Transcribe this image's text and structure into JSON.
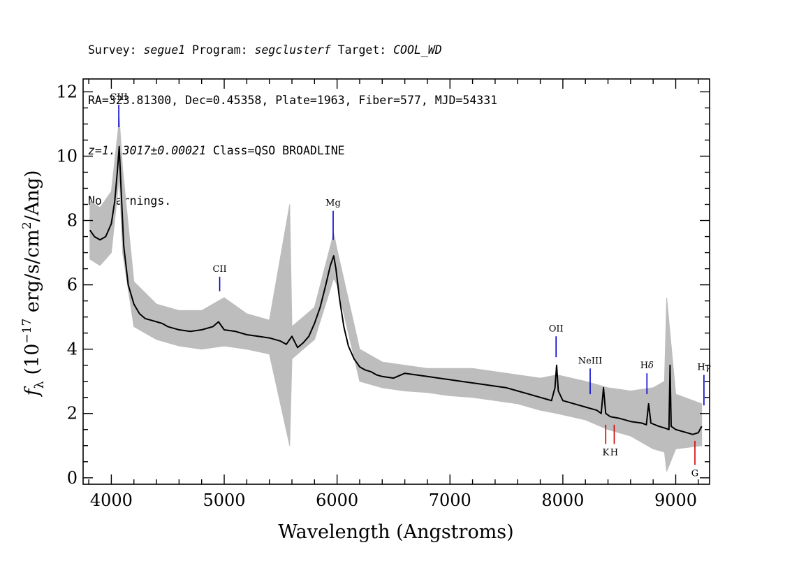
{
  "header": {
    "line1": {
      "survey_label": "Survey: ",
      "survey": "segue1",
      "program_label": " Program: ",
      "program": "segclusterf",
      "target_label": " Target: ",
      "target": "COOL_WD"
    },
    "line2": "RA=323.81300, Dec=0.45358, Plate=1963, Fiber=577, MJD=54331",
    "line3": {
      "z": "z=1.13017±0.00021",
      "class": " Class=QSO BROADLINE"
    },
    "line4": "No warnings."
  },
  "chart_data": {
    "type": "line",
    "xlabel": "Wavelength (Angstroms)",
    "ylabel": {
      "f": "f",
      "sub": "λ",
      "pre": " (10",
      "exp1": "−17",
      "mid": " erg/s/cm",
      "exp2": "2",
      "post": "/Ang)"
    },
    "xlim": [
      3750,
      9300
    ],
    "ylim": [
      -0.2,
      12.4
    ],
    "xticks": [
      4000,
      5000,
      6000,
      7000,
      8000,
      9000
    ],
    "yticks": [
      0,
      2,
      4,
      6,
      8,
      10,
      12
    ],
    "x_minor_step": 200,
    "y_minor_step": 0.5,
    "colors": {
      "flux": "#000000",
      "error": "#bdbdbd",
      "emission": "#0000cc",
      "absorption": "#cc0000"
    },
    "series": [
      {
        "role": "flux",
        "x": [
          3810,
          3850,
          3900,
          3950,
          4000,
          4030,
          4055,
          4070,
          4085,
          4110,
          4150,
          4200,
          4250,
          4300,
          4350,
          4400,
          4450,
          4500,
          4600,
          4700,
          4800,
          4900,
          4950,
          5000,
          5100,
          5200,
          5300,
          5400,
          5500,
          5550,
          5600,
          5650,
          5700,
          5750,
          5800,
          5850,
          5900,
          5940,
          5970,
          5990,
          6020,
          6060,
          6100,
          6150,
          6200,
          6250,
          6300,
          6350,
          6400,
          6500,
          6600,
          6700,
          6800,
          6900,
          7000,
          7100,
          7200,
          7300,
          7400,
          7500,
          7600,
          7700,
          7800,
          7850,
          7900,
          7930,
          7945,
          7960,
          8000,
          8050,
          8100,
          8150,
          8200,
          8250,
          8300,
          8340,
          8360,
          8380,
          8420,
          8500,
          8600,
          8700,
          8740,
          8760,
          8780,
          8850,
          8900,
          8940,
          8950,
          8960,
          9000,
          9050,
          9100,
          9150,
          9200,
          9230
        ],
        "y": [
          7.7,
          7.5,
          7.4,
          7.5,
          7.9,
          8.6,
          9.6,
          10.3,
          9.1,
          7.2,
          6.0,
          5.4,
          5.1,
          4.95,
          4.9,
          4.85,
          4.8,
          4.7,
          4.6,
          4.55,
          4.6,
          4.7,
          4.85,
          4.6,
          4.55,
          4.45,
          4.4,
          4.35,
          4.25,
          4.15,
          4.4,
          4.05,
          4.2,
          4.4,
          4.8,
          5.3,
          6.0,
          6.6,
          6.9,
          6.5,
          5.6,
          4.7,
          4.1,
          3.7,
          3.45,
          3.35,
          3.3,
          3.2,
          3.15,
          3.1,
          3.25,
          3.2,
          3.15,
          3.1,
          3.05,
          3.0,
          2.95,
          2.9,
          2.85,
          2.8,
          2.7,
          2.6,
          2.5,
          2.45,
          2.4,
          2.8,
          3.5,
          2.7,
          2.4,
          2.35,
          2.3,
          2.25,
          2.2,
          2.15,
          2.1,
          2.0,
          2.8,
          2.0,
          1.9,
          1.85,
          1.75,
          1.7,
          1.65,
          2.3,
          1.7,
          1.6,
          1.55,
          1.5,
          3.5,
          1.6,
          1.5,
          1.45,
          1.4,
          1.35,
          1.4,
          1.6
        ]
      },
      {
        "role": "error_envelope",
        "x": [
          3810,
          3900,
          4000,
          4060,
          4070,
          4100,
          4200,
          4400,
          4600,
          4800,
          5000,
          5200,
          5400,
          5580,
          5600,
          5800,
          5970,
          6000,
          6200,
          6400,
          6600,
          6800,
          7000,
          7200,
          7400,
          7600,
          7800,
          7950,
          8200,
          8400,
          8600,
          8800,
          8900,
          8920,
          9000,
          9230
        ],
        "y_low": [
          6.8,
          6.6,
          7.0,
          9.0,
          9.4,
          7.0,
          4.7,
          4.3,
          4.1,
          4.0,
          4.1,
          4.0,
          3.85,
          1.0,
          3.7,
          4.3,
          6.2,
          6.0,
          3.0,
          2.8,
          2.7,
          2.65,
          2.55,
          2.5,
          2.4,
          2.3,
          2.1,
          2.0,
          1.8,
          1.5,
          1.3,
          0.9,
          0.8,
          0.2,
          0.9,
          1.0
        ],
        "y_high": [
          8.6,
          8.4,
          8.9,
          10.8,
          11.2,
          9.6,
          6.1,
          5.4,
          5.2,
          5.2,
          5.6,
          5.1,
          4.9,
          8.5,
          4.7,
          5.3,
          7.6,
          7.1,
          4.0,
          3.6,
          3.5,
          3.4,
          3.4,
          3.4,
          3.3,
          3.2,
          3.1,
          3.2,
          3.0,
          2.8,
          2.7,
          2.8,
          3.0,
          5.6,
          2.6,
          2.3
        ]
      }
    ],
    "emission_lines": [
      {
        "label": "CIII",
        "x": 4066,
        "y_bottom": 10.9,
        "y_top": 11.6
      },
      {
        "label": "CII",
        "x": 4960,
        "y_bottom": 5.8,
        "y_top": 6.25
      },
      {
        "label": "Mg",
        "x": 5965,
        "y_bottom": 7.4,
        "y_top": 8.3
      },
      {
        "label": "OII",
        "x": 7940,
        "y_bottom": 3.75,
        "y_top": 4.4
      },
      {
        "label": "NeIII",
        "x": 8242,
        "y_bottom": 2.6,
        "y_top": 3.4
      },
      {
        "label": "H",
        "label_sym": "δ",
        "x": 8745,
        "y_bottom": 2.6,
        "y_top": 3.25
      },
      {
        "label": "H",
        "label_sym": "γ",
        "x": 9250,
        "y_bottom": 2.25,
        "y_top": 3.2
      }
    ],
    "absorption_lines": [
      {
        "label": "K",
        "x": 8380,
        "y_top": 1.65,
        "y_bottom": 1.05
      },
      {
        "label": "H",
        "x": 8455,
        "y_top": 1.65,
        "y_bottom": 1.05
      },
      {
        "label": "G",
        "x": 9170,
        "y_top": 1.15,
        "y_bottom": 0.4
      }
    ]
  }
}
